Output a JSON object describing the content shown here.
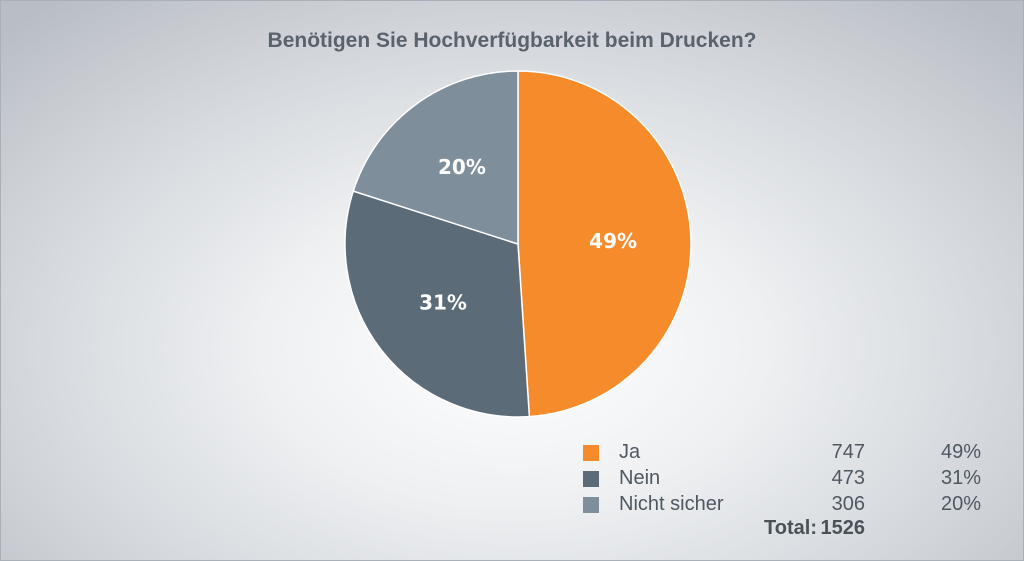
{
  "chart_data": {
    "type": "pie",
    "title": "Benötigen Sie Hochverfügbarkeit beim Drucken?",
    "slices": [
      {
        "label": "Ja",
        "count": 747,
        "percent_label": "49%",
        "color": "#f68b2c"
      },
      {
        "label": "Nein",
        "count": 473,
        "percent_label": "31%",
        "color": "#5c6b78"
      },
      {
        "label": "Nicht sicher",
        "count": 306,
        "percent_label": "20%",
        "color": "#7f8e9b"
      }
    ],
    "total_label": "Total:",
    "total": 1526
  },
  "legend": {
    "rows": [
      {
        "label": "Ja",
        "count": "747",
        "pct": "49%"
      },
      {
        "label": "Nein",
        "count": "473",
        "pct": "31%"
      },
      {
        "label": "Nicht sicher",
        "count": "306",
        "pct": "20%"
      }
    ],
    "total_label": "Total:",
    "total_value": "1526"
  }
}
